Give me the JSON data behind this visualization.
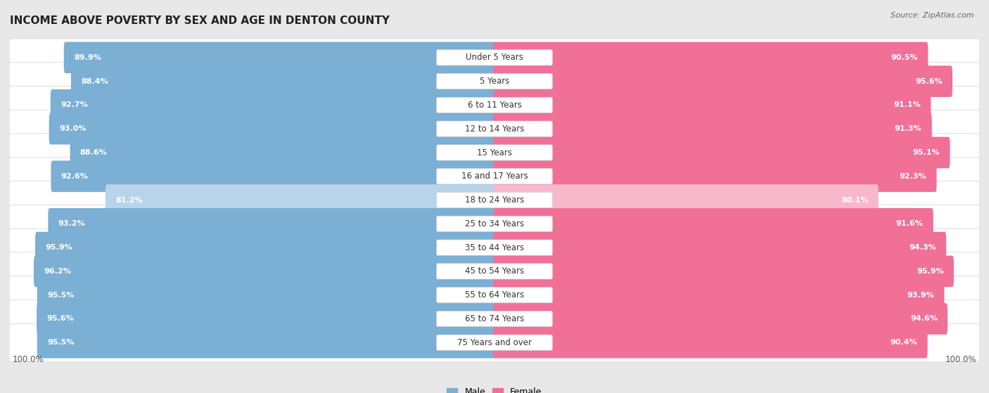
{
  "title": "INCOME ABOVE POVERTY BY SEX AND AGE IN DENTON COUNTY",
  "source": "Source: ZipAtlas.com",
  "categories": [
    "Under 5 Years",
    "5 Years",
    "6 to 11 Years",
    "12 to 14 Years",
    "15 Years",
    "16 and 17 Years",
    "18 to 24 Years",
    "25 to 34 Years",
    "35 to 44 Years",
    "45 to 54 Years",
    "55 to 64 Years",
    "65 to 74 Years",
    "75 Years and over"
  ],
  "male_values": [
    89.9,
    88.4,
    92.7,
    93.0,
    88.6,
    92.6,
    81.2,
    93.2,
    95.9,
    96.2,
    95.5,
    95.6,
    95.5
  ],
  "female_values": [
    90.5,
    95.6,
    91.1,
    91.3,
    95.1,
    92.3,
    80.1,
    91.6,
    94.3,
    95.9,
    93.9,
    94.6,
    90.4
  ],
  "male_color": "#7bafd4",
  "female_color": "#f07098",
  "male_light_color": "#b8d4eb",
  "female_light_color": "#f8b8cc",
  "male_label": "Male",
  "female_label": "Female",
  "bg_color": "#e8e8e8",
  "row_bg_color": "#ffffff",
  "title_fontsize": 11,
  "label_fontsize": 8.5,
  "value_fontsize": 8,
  "source_fontsize": 8
}
